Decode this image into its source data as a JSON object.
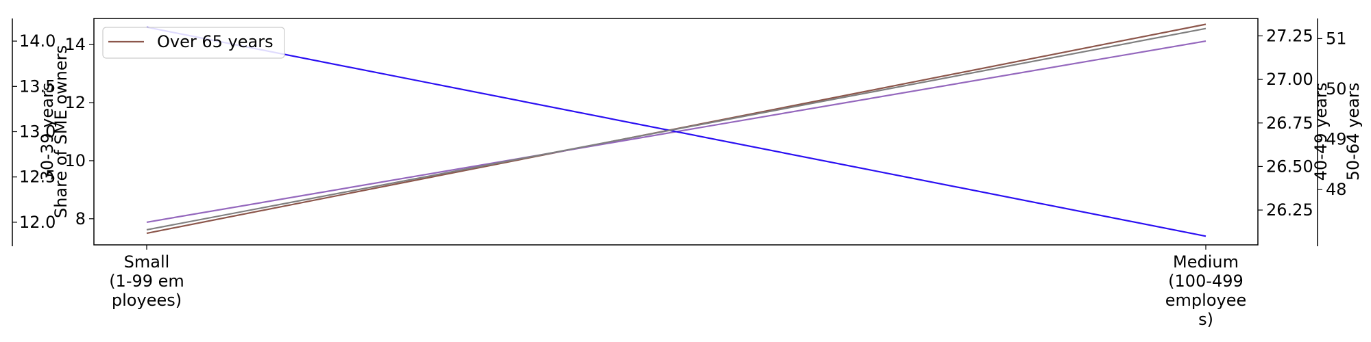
{
  "chart_data": {
    "type": "line",
    "categories": [
      "Small\n(1-99 em\nployees)",
      "Medium\n(100-499\nemployee\ns)"
    ],
    "axes": {
      "main": {
        "label": "Share of SME owners",
        "ylim": [
          7.1,
          14.9
        ],
        "ticks": [
          8,
          10,
          12,
          14
        ]
      },
      "left2": {
        "label": "30-39 years",
        "ylim": [
          11.75,
          14.25
        ],
        "ticks": [
          "12.0",
          "12.5",
          "13.0",
          "13.5",
          "14.0"
        ]
      },
      "right1": {
        "label": "40-49 years",
        "ylim": [
          26.05,
          27.35
        ],
        "ticks": [
          "26.25",
          "26.50",
          "26.75",
          "27.00",
          "27.25"
        ]
      },
      "right2": {
        "label": "50-64 years",
        "ylim": [
          46.9,
          51.4
        ],
        "ticks": [
          "48",
          "49",
          "50",
          "51"
        ]
      }
    },
    "series": [
      {
        "name": "Over 65 years",
        "axis": "main",
        "values": [
          7.5,
          14.7
        ],
        "color": "#8c564b"
      },
      {
        "axis": "left2",
        "values": [
          12.0,
          14.0
        ],
        "color": "#9467bd"
      },
      {
        "axis": "right1",
        "values": [
          27.3,
          26.1
        ],
        "color": "#2a0ff2"
      },
      {
        "axis": "right2",
        "values": [
          47.2,
          51.2
        ],
        "color": "#7f7f7f"
      }
    ],
    "legend": {
      "position": "top-left",
      "entries": [
        "Over 65 years"
      ]
    },
    "grid": false
  }
}
